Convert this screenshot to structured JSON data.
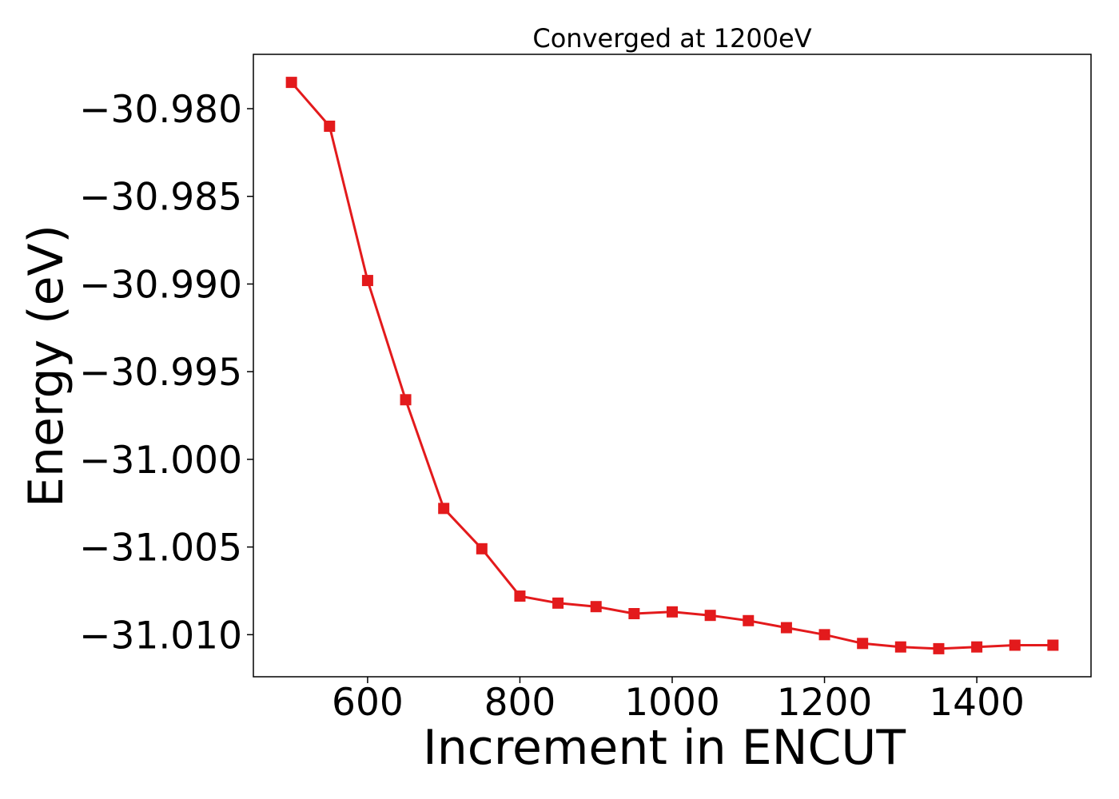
{
  "chart_data": {
    "type": "line",
    "title": "Converged at 1200eV",
    "xlabel": "Increment in ENCUT",
    "ylabel": "Energy (eV)",
    "xlim": [
      450,
      1550
    ],
    "ylim": [
      -31.0124,
      -30.9769
    ],
    "xticks": [
      600,
      800,
      1000,
      1200,
      1400
    ],
    "yticks": [
      -30.98,
      -30.985,
      -30.99,
      -30.995,
      -31.0,
      -31.005,
      -31.01
    ],
    "ytick_labels": [
      "−30.980",
      "−30.985",
      "−30.990",
      "−30.995",
      "−31.000",
      "−31.005",
      "−31.010"
    ],
    "grid": false,
    "legend": "none",
    "series": [
      {
        "color": "#e31a1c",
        "marker": "square",
        "x": [
          500,
          550,
          600,
          650,
          700,
          750,
          800,
          850,
          900,
          950,
          1000,
          1050,
          1100,
          1150,
          1200,
          1250,
          1300,
          1350,
          1400,
          1450,
          1500
        ],
        "y": [
          -30.9785,
          -30.981,
          -30.9898,
          -30.9966,
          -31.0028,
          -31.0051,
          -31.0078,
          -31.0082,
          -31.0084,
          -31.0088,
          -31.0087,
          -31.0089,
          -31.0092,
          -31.0096,
          -31.01,
          -31.0105,
          -31.0107,
          -31.0108,
          -31.0107,
          -31.0106,
          -31.0106
        ]
      }
    ]
  }
}
